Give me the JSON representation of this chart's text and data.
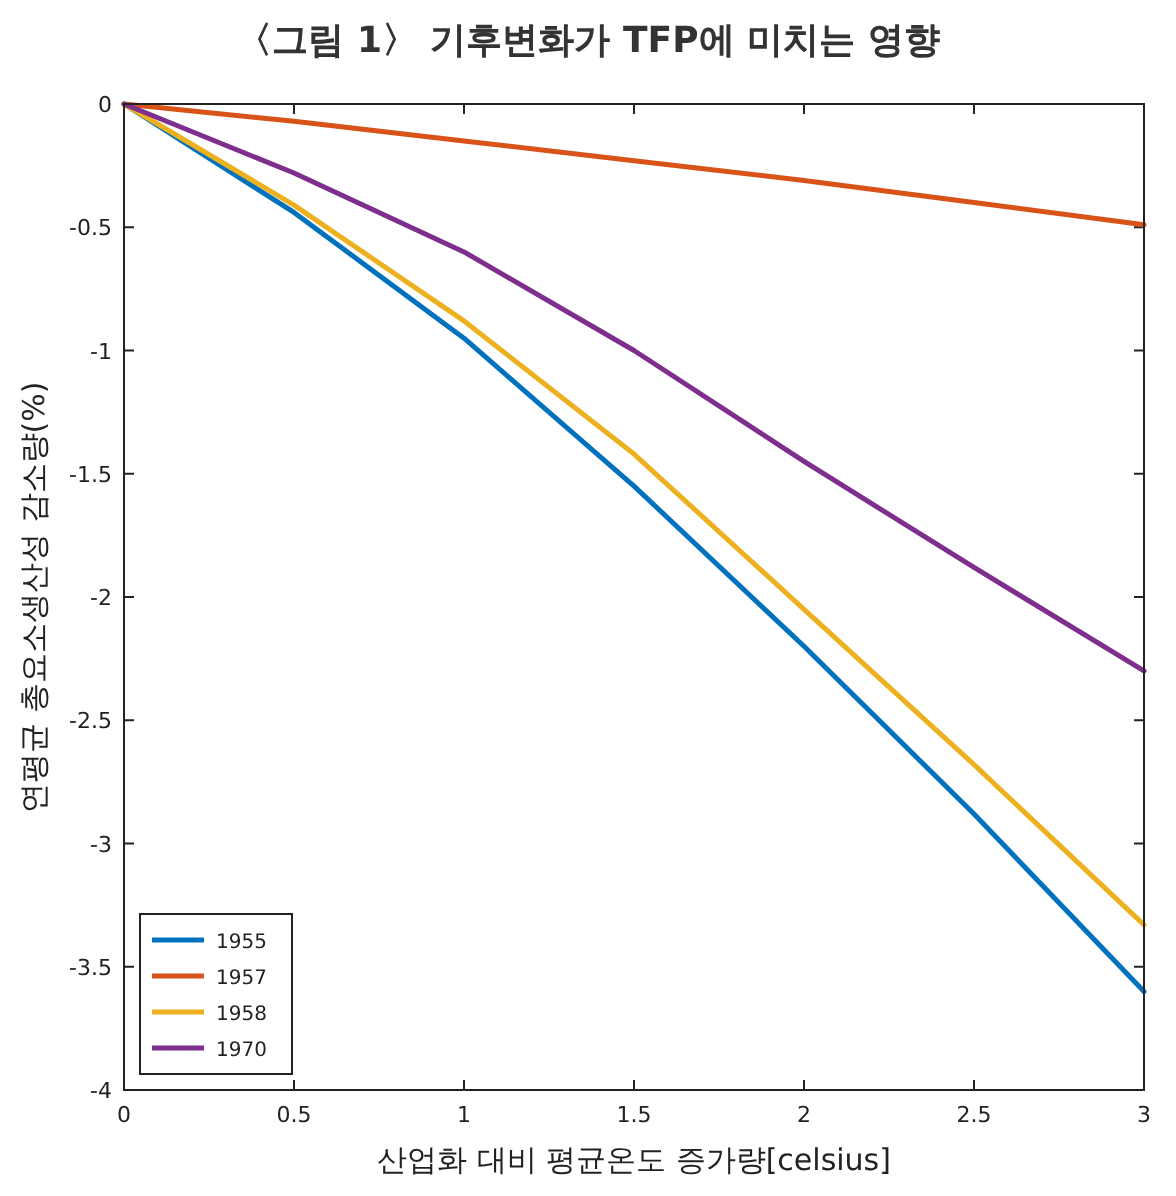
{
  "chart_data": {
    "type": "line",
    "title": "〈그림 1〉 기후변화가 TFP에 미치는 영향",
    "xlabel": "산업화 대비 평균온도 증가량[celsius]",
    "ylabel": "연평균 총요소생산성 감소량(%)",
    "x": [
      0,
      0.5,
      1,
      1.5,
      2,
      2.5,
      3
    ],
    "series": [
      {
        "name": "1955",
        "color": "#0072bd",
        "values": [
          0,
          -0.44,
          -0.95,
          -1.55,
          -2.2,
          -2.88,
          -3.6
        ]
      },
      {
        "name": "1957",
        "color": "#d95319",
        "values": [
          0,
          -0.07,
          -0.15,
          -0.23,
          -0.31,
          -0.4,
          -0.49
        ]
      },
      {
        "name": "1958",
        "color": "#edb120",
        "values": [
          0,
          -0.41,
          -0.88,
          -1.42,
          -2.05,
          -2.68,
          -3.33
        ]
      },
      {
        "name": "1970",
        "color": "#7e2f8e",
        "values": [
          0,
          -0.28,
          -0.6,
          -1.0,
          -1.45,
          -1.88,
          -2.3
        ]
      }
    ],
    "xlim": [
      0,
      3
    ],
    "ylim": [
      -4,
      0
    ],
    "xticks": [
      0,
      0.5,
      1,
      1.5,
      2,
      2.5,
      3
    ],
    "yticks": [
      0,
      -0.5,
      -1,
      -1.5,
      -2,
      -2.5,
      -3,
      -3.5,
      -4
    ],
    "legend": "bottom left",
    "grid": false
  }
}
